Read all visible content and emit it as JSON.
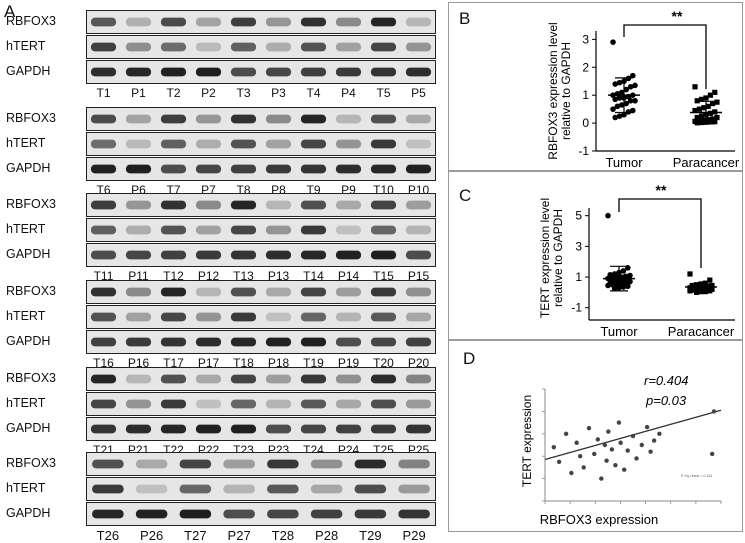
{
  "panel_a": {
    "letter": "A",
    "row_labels": [
      "RBFOX3",
      "hTERT",
      "GAPDH"
    ],
    "groups": [
      [
        "T1",
        "P1",
        "T2",
        "P2",
        "T3",
        "P3",
        "T4",
        "P4",
        "T5",
        "P5"
      ],
      [
        "T6",
        "P6",
        "T7",
        "P7",
        "T8",
        "P8",
        "T9",
        "P9",
        "T10",
        "P10"
      ],
      [
        "T11",
        "P11",
        "T12",
        "P12",
        "T13",
        "P13",
        "T14",
        "P14",
        "T15",
        "P15"
      ],
      [
        "T16",
        "P16",
        "T17",
        "P17",
        "T18",
        "P18",
        "T19",
        "P19",
        "T20",
        "P20"
      ],
      [
        "T21",
        "P21",
        "T22",
        "P22",
        "T23",
        "P23",
        "T24",
        "P24",
        "T25",
        "P25"
      ],
      [
        "T26",
        "P26",
        "T27",
        "P27",
        "T28",
        "P28",
        "T29",
        "P29"
      ]
    ]
  },
  "panel_b": {
    "letter": "B",
    "significance": "**"
  },
  "panel_c": {
    "letter": "C",
    "significance": "**"
  },
  "panel_d": {
    "letter": "D",
    "r_text": "r=0.404",
    "p_text": "p=0.03",
    "fit_label": "R Sq Linear = 0.164"
  },
  "chart_data": [
    {
      "type": "scatter",
      "panel": "B",
      "ylabel": "RBFOX3  expression level relative to GAPDH",
      "yticks": [
        "-1",
        "0",
        "1",
        "2",
        "3"
      ],
      "ylim": [
        -1,
        3.3
      ],
      "categories": [
        "Tumor",
        "Paracancer"
      ],
      "series": [
        {
          "values": [
            2.9,
            1.7,
            1.6,
            1.5,
            1.45,
            1.4,
            1.35,
            1.3,
            1.2,
            1.1,
            1.05,
            1.0,
            1.0,
            0.95,
            0.9,
            0.9,
            0.85,
            0.8,
            0.8,
            0.7,
            0.65,
            0.6,
            0.5,
            0.45,
            0.4,
            0.3,
            0.25,
            0.2
          ],
          "mean": 1.0,
          "sd": 0.62
        },
        {
          "values": [
            1.3,
            1.1,
            1.0,
            0.9,
            0.85,
            0.8,
            0.75,
            0.7,
            0.6,
            0.55,
            0.5,
            0.45,
            0.4,
            0.35,
            0.3,
            0.25,
            0.2,
            0.2,
            0.15,
            0.12,
            0.1,
            0.08,
            0.06,
            0.05,
            0.04,
            0.03,
            0.02,
            0.01
          ],
          "mean": 0.38,
          "sd": 0.4
        }
      ]
    },
    {
      "type": "scatter",
      "panel": "C",
      "ylabel": "TERT  expression level relative to GAPDH",
      "yticks": [
        "-1",
        "1",
        "3",
        "5"
      ],
      "ylim": [
        -1.8,
        5.5
      ],
      "categories": [
        "Tumor",
        "Paracancer"
      ],
      "series": [
        {
          "values": [
            5.0,
            1.6,
            1.4,
            1.3,
            1.2,
            1.15,
            1.1,
            1.05,
            1.0,
            1.0,
            0.95,
            0.9,
            0.9,
            0.85,
            0.8,
            0.8,
            0.75,
            0.7,
            0.65,
            0.6,
            0.55,
            0.5,
            0.45,
            0.4,
            0.35,
            0.3,
            0.25
          ],
          "mean": 0.9,
          "sd": 0.8
        },
        {
          "values": [
            1.2,
            0.8,
            0.6,
            0.55,
            0.5,
            0.45,
            0.45,
            0.4,
            0.4,
            0.35,
            0.35,
            0.3,
            0.3,
            0.3,
            0.25,
            0.25,
            0.25,
            0.2,
            0.2,
            0.2,
            0.15,
            0.15,
            0.1,
            0.1,
            0.05,
            0.05,
            0.0
          ],
          "mean": 0.35,
          "sd": 0.2
        }
      ]
    },
    {
      "type": "scatter",
      "panel": "D",
      "xlabel": "RBFOX3 expression",
      "ylabel": "TERT  expression",
      "xlim": [
        0,
        1
      ],
      "ylim": [
        0,
        1
      ],
      "x": [
        0.05,
        0.08,
        0.12,
        0.15,
        0.18,
        0.2,
        0.22,
        0.25,
        0.28,
        0.3,
        0.32,
        0.34,
        0.35,
        0.36,
        0.38,
        0.4,
        0.42,
        0.43,
        0.45,
        0.47,
        0.5,
        0.52,
        0.55,
        0.58,
        0.6,
        0.62,
        0.65,
        0.95,
        0.96
      ],
      "y": [
        0.48,
        0.35,
        0.6,
        0.25,
        0.52,
        0.4,
        0.3,
        0.65,
        0.42,
        0.55,
        0.2,
        0.5,
        0.36,
        0.62,
        0.46,
        0.32,
        0.7,
        0.52,
        0.28,
        0.45,
        0.58,
        0.38,
        0.5,
        0.66,
        0.44,
        0.54,
        0.6,
        0.42,
        0.8
      ],
      "fit": {
        "intercept": 0.37,
        "slope": 0.44
      }
    }
  ]
}
